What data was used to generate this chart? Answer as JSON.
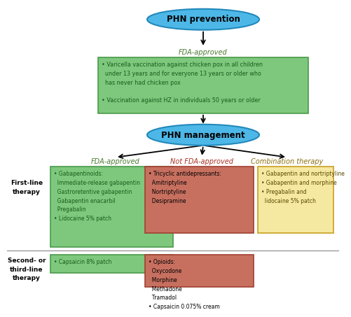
{
  "background_color": "#ffffff",
  "ellipse_color": "#4db8e8",
  "ellipse_edge_color": "#2288bb",
  "ellipse_text_color": "#000000",
  "green_box_bg": "#7dc87d",
  "green_box_edge": "#4a9a4a",
  "green_box_text": "#1a5c1a",
  "red_box_bg": "#c87060",
  "red_box_edge": "#a04030",
  "red_box_text": "#000000",
  "yellow_box_bg": "#f5e8a0",
  "yellow_box_edge": "#c8a020",
  "yellow_box_text": "#5a4a00",
  "header_green": "#4a7a30",
  "header_red": "#aa3020",
  "header_yellow": "#8a7010",
  "phn_prevention_text": "PHN prevention",
  "fda_approved_label_top": "FDA-approved",
  "prevention_box_text": "• Varicella vaccination against chicken pox in all children\n  under 13 years and for everyone 13 years or older who\n  has never had chicken pox\n\n• Vaccination against HZ in individuals 50 years or older",
  "phn_management_text": "PHN management",
  "col_label_fda": "FDA-approved",
  "col_label_notfda": "Not FDA-approved",
  "col_label_combo": "Combination therapy",
  "first_line_label": "First-line\ntherapy",
  "second_line_label": "Second- or\nthird-line\ntherapy",
  "green_first_text": "• Gabapentinoids:\n  Immediate-release gabapentin\n  Gastroretentive gabapentin\n  Gabapentin enacarbil\n  Pregabalin\n• Lidocaine 5% patch",
  "red_first_text": "• Tricyclic antidepressants:\n  Amitriptyline\n  Nortriptyline\n  Desipramine",
  "yellow_first_text": "• Gabapentin and nortriptyline\n• Gabapentin and morphine\n• Pregabalin and\n  lidocaine 5% patch",
  "green_second_text": "• Capsaicin 8% patch",
  "red_second_text": "• Opioids:\n  Oxycodone\n  Morphine\n  Methadone\n  Tramadol\n• Capsaicin 0.075% cream"
}
